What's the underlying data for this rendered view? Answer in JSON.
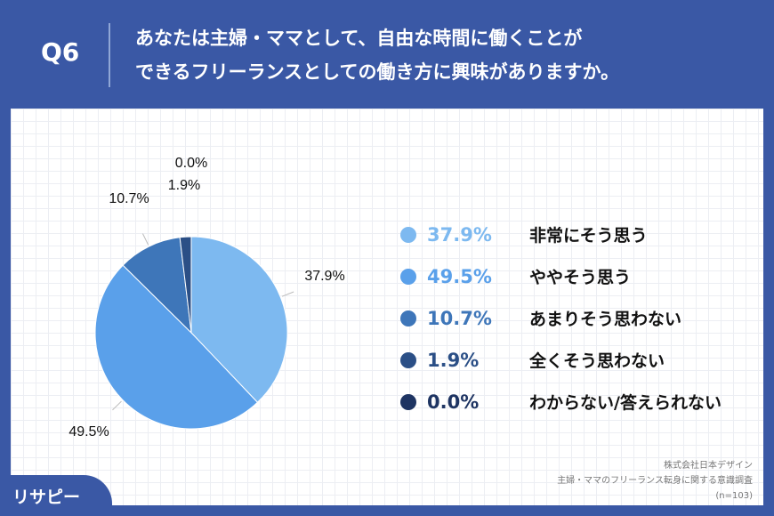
{
  "header": {
    "q": "Q6",
    "title_line1": "あなたは主婦・ママとして、自由な時間に働くことが",
    "title_line2": "できるフリーランスとしての働き方に興味がありますか。"
  },
  "chart_data": {
    "type": "pie",
    "categories": [
      "非常にそう思う",
      "ややそう思う",
      "あまりそう思わない",
      "全くそう思わない",
      "わからない/答えられない"
    ],
    "values": [
      37.9,
      49.5,
      10.7,
      1.9,
      0.0
    ],
    "labels": [
      "37.9%",
      "49.5%",
      "10.7%",
      "1.9%",
      "0.0%"
    ],
    "colors": [
      "#7db9f0",
      "#5aa0ea",
      "#3e76b9",
      "#2b4f86",
      "#1e3462"
    ],
    "legend": "right"
  },
  "source": {
    "company": "株式会社日本デザイン",
    "survey": "主婦・ママのフリーランス転身に関する意識調査",
    "n": "(n=103)"
  },
  "logo": "リサピー"
}
